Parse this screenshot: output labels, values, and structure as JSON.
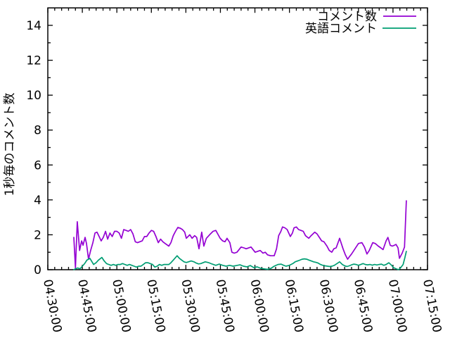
{
  "background": "#ffffff",
  "chart_data": {
    "type": "line",
    "title": "",
    "xlabel": "",
    "ylabel": "1秒毎のコメント数",
    "x_unit": "minutes since 04:30:00",
    "xlim": [
      0,
      165
    ],
    "ylim": [
      0,
      15
    ],
    "grid": false,
    "legend_position": "top-right",
    "y_ticks": [
      0,
      2,
      4,
      6,
      8,
      10,
      12,
      14
    ],
    "y_minor_step": 1,
    "x_minor_step_min": 3,
    "x_ticks": [
      {
        "label": "04:30:00",
        "min": 0
      },
      {
        "label": "04:45:00",
        "min": 15
      },
      {
        "label": "05:00:00",
        "min": 30
      },
      {
        "label": "05:15:00",
        "min": 45
      },
      {
        "label": "05:30:00",
        "min": 60
      },
      {
        "label": "05:45:00",
        "min": 75
      },
      {
        "label": "06:00:00",
        "min": 90
      },
      {
        "label": "06:15:00",
        "min": 105
      },
      {
        "label": "06:30:00",
        "min": 120
      },
      {
        "label": "06:45:00",
        "min": 135
      },
      {
        "label": "07:00:00",
        "min": 150
      },
      {
        "label": "07:15:00",
        "min": 165
      }
    ],
    "series": [
      {
        "id": "comments",
        "name": "コメント数",
        "color": "#9400d3",
        "points": [
          [
            11.3,
            1.85
          ],
          [
            12,
            0.1
          ],
          [
            12.8,
            2.75
          ],
          [
            13.8,
            1.1
          ],
          [
            14.7,
            1.65
          ],
          [
            15.3,
            1.4
          ],
          [
            16.2,
            1.85
          ],
          [
            16.8,
            1.5
          ],
          [
            17.7,
            0.6
          ],
          [
            18.6,
            1.1
          ],
          [
            19.6,
            1.55
          ],
          [
            20.5,
            2.1
          ],
          [
            21.4,
            2.15
          ],
          [
            22.3,
            1.9
          ],
          [
            23.2,
            1.65
          ],
          [
            24.1,
            1.85
          ],
          [
            25.1,
            2.2
          ],
          [
            26,
            1.75
          ],
          [
            27,
            2.1
          ],
          [
            28,
            1.9
          ],
          [
            29,
            2.2
          ],
          [
            30,
            2.2
          ],
          [
            31,
            2.1
          ],
          [
            32,
            1.8
          ],
          [
            33,
            2.3
          ],
          [
            34,
            2.25
          ],
          [
            35,
            2.2
          ],
          [
            36,
            2.3
          ],
          [
            37,
            2.05
          ],
          [
            38,
            1.6
          ],
          [
            39,
            1.55
          ],
          [
            40,
            1.6
          ],
          [
            41,
            1.65
          ],
          [
            42,
            1.9
          ],
          [
            43,
            1.9
          ],
          [
            44,
            2.1
          ],
          [
            45,
            2.25
          ],
          [
            46,
            2.2
          ],
          [
            47,
            1.9
          ],
          [
            48,
            1.55
          ],
          [
            49,
            1.75
          ],
          [
            50,
            1.6
          ],
          [
            51,
            1.5
          ],
          [
            52.6,
            1.35
          ],
          [
            53.5,
            1.55
          ],
          [
            54.5,
            1.95
          ],
          [
            55.5,
            2.2
          ],
          [
            56.5,
            2.42
          ],
          [
            57.5,
            2.38
          ],
          [
            58.5,
            2.3
          ],
          [
            59.5,
            2.15
          ],
          [
            60.2,
            1.8
          ],
          [
            61.7,
            2.0
          ],
          [
            62.7,
            1.8
          ],
          [
            63.8,
            1.95
          ],
          [
            64.7,
            1.85
          ],
          [
            65.7,
            1.2
          ],
          [
            66.9,
            2.15
          ],
          [
            67.8,
            1.35
          ],
          [
            68.9,
            1.8
          ],
          [
            70.3,
            2.0
          ],
          [
            71.8,
            2.2
          ],
          [
            73,
            2.25
          ],
          [
            74.9,
            1.8
          ],
          [
            76,
            1.65
          ],
          [
            77,
            1.6
          ],
          [
            77.9,
            1.8
          ],
          [
            79.1,
            1.55
          ],
          [
            80,
            1.0
          ],
          [
            81,
            0.95
          ],
          [
            82.2,
            1.0
          ],
          [
            84,
            1.3
          ],
          [
            85.2,
            1.25
          ],
          [
            86.2,
            1.2
          ],
          [
            88.3,
            1.3
          ],
          [
            90.1,
            1.0
          ],
          [
            92.3,
            1.1
          ],
          [
            93.5,
            0.95
          ],
          [
            94.5,
            1.0
          ],
          [
            95.5,
            0.85
          ],
          [
            96.8,
            0.8
          ],
          [
            98.4,
            0.8
          ],
          [
            99.4,
            1.2
          ],
          [
            100.3,
            1.95
          ],
          [
            101.3,
            2.2
          ],
          [
            102,
            2.45
          ],
          [
            103,
            2.4
          ],
          [
            104,
            2.3
          ],
          [
            105.4,
            1.9
          ],
          [
            106.3,
            2.1
          ],
          [
            107,
            2.4
          ],
          [
            108,
            2.45
          ],
          [
            109,
            2.3
          ],
          [
            110,
            2.25
          ],
          [
            111,
            2.2
          ],
          [
            112,
            1.95
          ],
          [
            113.4,
            1.8
          ],
          [
            114.4,
            1.95
          ],
          [
            116,
            2.15
          ],
          [
            117,
            2.05
          ],
          [
            118,
            1.85
          ],
          [
            119,
            1.65
          ],
          [
            120,
            1.6
          ],
          [
            121.3,
            1.35
          ],
          [
            122.3,
            1.1
          ],
          [
            123.4,
            1.0
          ],
          [
            124.3,
            1.2
          ],
          [
            125.3,
            1.25
          ],
          [
            126.8,
            1.8
          ],
          [
            128.3,
            1.2
          ],
          [
            129.3,
            0.85
          ],
          [
            130.3,
            0.6
          ],
          [
            131,
            0.73
          ],
          [
            132,
            0.9
          ],
          [
            133,
            1.1
          ],
          [
            134,
            1.3
          ],
          [
            135,
            1.5
          ],
          [
            136.5,
            1.55
          ],
          [
            137.6,
            1.3
          ],
          [
            138.7,
            0.9
          ],
          [
            139.7,
            1.1
          ],
          [
            141.2,
            1.55
          ],
          [
            142.3,
            1.5
          ],
          [
            143.6,
            1.35
          ],
          [
            144.7,
            1.25
          ],
          [
            145.7,
            1.15
          ],
          [
            147,
            1.65
          ],
          [
            147.8,
            1.85
          ],
          [
            148.8,
            1.4
          ],
          [
            149.7,
            1.35
          ],
          [
            150.6,
            1.4
          ],
          [
            151.3,
            1.45
          ],
          [
            152.2,
            1.25
          ],
          [
            152.8,
            0.65
          ],
          [
            154,
            0.95
          ],
          [
            155,
            1.3
          ],
          [
            155.8,
            3.95
          ]
        ]
      },
      {
        "id": "english",
        "name": "英語コメント",
        "color": "#009e73",
        "points": [
          [
            11.3,
            0.0
          ],
          [
            12,
            0.05
          ],
          [
            13,
            0.1
          ],
          [
            14,
            0.05
          ],
          [
            15,
            0.2
          ],
          [
            16,
            0.35
          ],
          [
            17,
            0.55
          ],
          [
            18.3,
            0.65
          ],
          [
            19.9,
            0.3
          ],
          [
            21,
            0.4
          ],
          [
            22,
            0.55
          ],
          [
            23.5,
            0.7
          ],
          [
            24.5,
            0.5
          ],
          [
            25.5,
            0.35
          ],
          [
            26.5,
            0.3
          ],
          [
            27.5,
            0.25
          ],
          [
            28.5,
            0.3
          ],
          [
            29.5,
            0.25
          ],
          [
            30.5,
            0.3
          ],
          [
            31.5,
            0.3
          ],
          [
            32.5,
            0.35
          ],
          [
            33.5,
            0.3
          ],
          [
            34.5,
            0.25
          ],
          [
            35.5,
            0.3
          ],
          [
            36.5,
            0.25
          ],
          [
            37.5,
            0.2
          ],
          [
            38.5,
            0.15
          ],
          [
            39.5,
            0.2
          ],
          [
            40.5,
            0.2
          ],
          [
            41.5,
            0.3
          ],
          [
            42.5,
            0.4
          ],
          [
            43.5,
            0.4
          ],
          [
            44.5,
            0.35
          ],
          [
            45.5,
            0.3
          ],
          [
            46.5,
            0.15
          ],
          [
            47.5,
            0.2
          ],
          [
            48.5,
            0.3
          ],
          [
            49.5,
            0.25
          ],
          [
            50.5,
            0.3
          ],
          [
            51.5,
            0.3
          ],
          [
            52.6,
            0.3
          ],
          [
            53.5,
            0.4
          ],
          [
            54.5,
            0.55
          ],
          [
            56.2,
            0.8
          ],
          [
            57.2,
            0.65
          ],
          [
            58.2,
            0.55
          ],
          [
            59.2,
            0.45
          ],
          [
            60.2,
            0.41
          ],
          [
            62.3,
            0.5
          ],
          [
            63.5,
            0.45
          ],
          [
            64.5,
            0.38
          ],
          [
            65.5,
            0.33
          ],
          [
            66.5,
            0.35
          ],
          [
            68.4,
            0.45
          ],
          [
            70,
            0.4
          ],
          [
            71.5,
            0.32
          ],
          [
            73,
            0.25
          ],
          [
            74.5,
            0.32
          ],
          [
            76,
            0.25
          ],
          [
            77.5,
            0.2
          ],
          [
            79,
            0.25
          ],
          [
            80.5,
            0.2
          ],
          [
            82,
            0.24
          ],
          [
            83.5,
            0.28
          ],
          [
            85,
            0.2
          ],
          [
            86.5,
            0.16
          ],
          [
            88,
            0.24
          ],
          [
            89.5,
            0.12
          ],
          [
            91,
            0.16
          ],
          [
            92.5,
            0.08
          ],
          [
            94,
            0.05
          ],
          [
            95.5,
            0.02
          ],
          [
            97,
            0.08
          ],
          [
            98.4,
            0.2
          ],
          [
            100,
            0.3
          ],
          [
            101.4,
            0.32
          ],
          [
            102.5,
            0.25
          ],
          [
            103.5,
            0.2
          ],
          [
            105,
            0.25
          ],
          [
            106.5,
            0.35
          ],
          [
            107.5,
            0.45
          ],
          [
            109,
            0.52
          ],
          [
            110.5,
            0.6
          ],
          [
            111.5,
            0.62
          ],
          [
            112.5,
            0.6
          ],
          [
            113.5,
            0.55
          ],
          [
            114.5,
            0.5
          ],
          [
            115.5,
            0.45
          ],
          [
            116.5,
            0.42
          ],
          [
            117.5,
            0.38
          ],
          [
            118.5,
            0.3
          ],
          [
            119.5,
            0.25
          ],
          [
            120.5,
            0.22
          ],
          [
            121.5,
            0.2
          ],
          [
            122.5,
            0.18
          ],
          [
            123.5,
            0.2
          ],
          [
            124.5,
            0.25
          ],
          [
            126.8,
            0.45
          ],
          [
            128,
            0.3
          ],
          [
            129,
            0.22
          ],
          [
            130,
            0.18
          ],
          [
            131,
            0.22
          ],
          [
            132,
            0.28
          ],
          [
            133,
            0.32
          ],
          [
            134,
            0.3
          ],
          [
            135,
            0.25
          ],
          [
            136,
            0.3
          ],
          [
            137,
            0.35
          ],
          [
            138,
            0.3
          ],
          [
            139,
            0.28
          ],
          [
            140,
            0.3
          ],
          [
            141,
            0.26
          ],
          [
            142,
            0.3
          ],
          [
            143,
            0.27
          ],
          [
            144,
            0.3
          ],
          [
            145,
            0.32
          ],
          [
            146,
            0.25
          ],
          [
            147,
            0.3
          ],
          [
            148.2,
            0.4
          ],
          [
            149.2,
            0.28
          ],
          [
            150.2,
            0.12
          ],
          [
            151.2,
            0.06
          ],
          [
            152.4,
            0.0
          ],
          [
            153.4,
            0.12
          ],
          [
            154.4,
            0.3
          ],
          [
            155.2,
            0.7
          ],
          [
            155.8,
            1.05
          ]
        ]
      }
    ]
  }
}
